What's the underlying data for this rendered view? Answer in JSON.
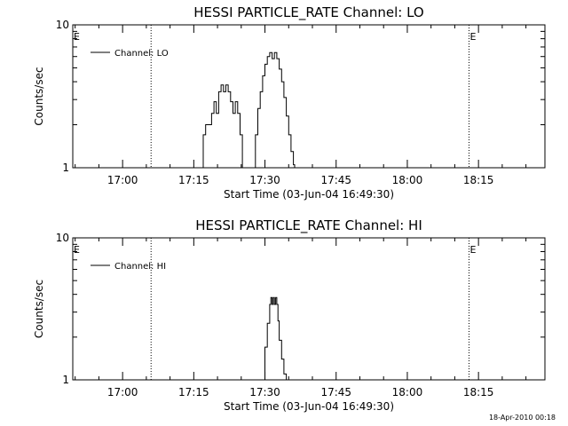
{
  "chart_data": [
    {
      "type": "line",
      "title": "HESSI PARTICLE_RATE Channel: LO",
      "xlabel": "Start Time (03-Jun-04 16:49:30)",
      "ylabel": "Counts/sec",
      "y_scale": "log",
      "ylim": [
        1,
        10
      ],
      "xlim": [
        "16:49:30",
        "18:29:00"
      ],
      "x_ticks": [
        "17:00",
        "17:15",
        "17:30",
        "17:45",
        "18:00",
        "18:15"
      ],
      "y_ticks": [
        "1",
        "10"
      ],
      "legend_position": "top-left",
      "series": [
        {
          "name": "Channel: LO",
          "x": [
            "17:16:00",
            "17:17:00",
            "17:17:30",
            "17:18:00",
            "17:18:45",
            "17:19:15",
            "17:19:45",
            "17:20:15",
            "17:20:45",
            "17:21:15",
            "17:21:45",
            "17:22:15",
            "17:22:45",
            "17:23:15",
            "17:23:45",
            "17:24:15",
            "17:24:45",
            "17:25:15",
            "17:25:30",
            "17:26:00",
            "17:26:30",
            "17:27:00",
            "17:27:30",
            "17:28:00",
            "17:28:30",
            "17:29:00",
            "17:29:30",
            "17:30:00",
            "17:30:30",
            "17:31:00",
            "17:31:30",
            "17:32:00",
            "17:32:30",
            "17:33:00",
            "17:33:30",
            "17:34:00",
            "17:34:30",
            "17:35:00",
            "17:35:30",
            "17:36:00",
            "17:36:15",
            "17:36:30"
          ],
          "y": [
            1,
            1.7,
            2.0,
            2.0,
            2.4,
            2.9,
            2.4,
            3.4,
            3.8,
            3.4,
            3.8,
            3.4,
            2.9,
            2.4,
            2.9,
            2.4,
            1.7,
            1.0,
            1.0,
            1.0,
            1.0,
            1.0,
            1.0,
            1.7,
            2.6,
            3.4,
            4.4,
            5.3,
            6.0,
            6.4,
            5.8,
            6.4,
            5.8,
            4.9,
            4.0,
            3.1,
            2.3,
            1.7,
            1.3,
            1.05,
            1.0,
            1.0
          ]
        }
      ],
      "annotations": [
        {
          "text": "E",
          "x": "16:49:30"
        },
        {
          "text": "E",
          "x": "18:13:00"
        }
      ],
      "vertical_dotted_lines_x": [
        "17:06:00",
        "18:13:00",
        "18:29:00"
      ]
    },
    {
      "type": "line",
      "title": "HESSI PARTICLE_RATE Channel: HI",
      "xlabel": "Start Time (03-Jun-04 16:49:30)",
      "ylabel": "Counts/sec",
      "y_scale": "log",
      "ylim": [
        1,
        10
      ],
      "xlim": [
        "16:49:30",
        "18:29:00"
      ],
      "x_ticks": [
        "17:00",
        "17:15",
        "17:30",
        "17:45",
        "18:00",
        "18:15"
      ],
      "y_ticks": [
        "1",
        "10"
      ],
      "legend_position": "top-left",
      "series": [
        {
          "name": "Channel: HI",
          "x": [
            "17:29:30",
            "17:30:00",
            "17:30:30",
            "17:31:00",
            "17:31:15",
            "17:31:30",
            "17:31:45",
            "17:32:00",
            "17:32:15",
            "17:32:30",
            "17:32:45",
            "17:33:00",
            "17:33:30",
            "17:34:00",
            "17:34:30",
            "17:34:45"
          ],
          "y": [
            1.0,
            1.7,
            2.5,
            3.4,
            3.8,
            3.4,
            3.8,
            3.4,
            3.8,
            3.4,
            2.6,
            1.9,
            1.4,
            1.1,
            1.0,
            1.0
          ]
        }
      ],
      "annotations": [
        {
          "text": "E",
          "x": "16:49:30"
        },
        {
          "text": "E",
          "x": "18:13:00"
        }
      ],
      "vertical_dotted_lines_x": [
        "17:06:00",
        "18:13:00",
        "18:29:00"
      ]
    }
  ],
  "footer": {
    "timestamp": "18-Apr-2010 00:18"
  }
}
